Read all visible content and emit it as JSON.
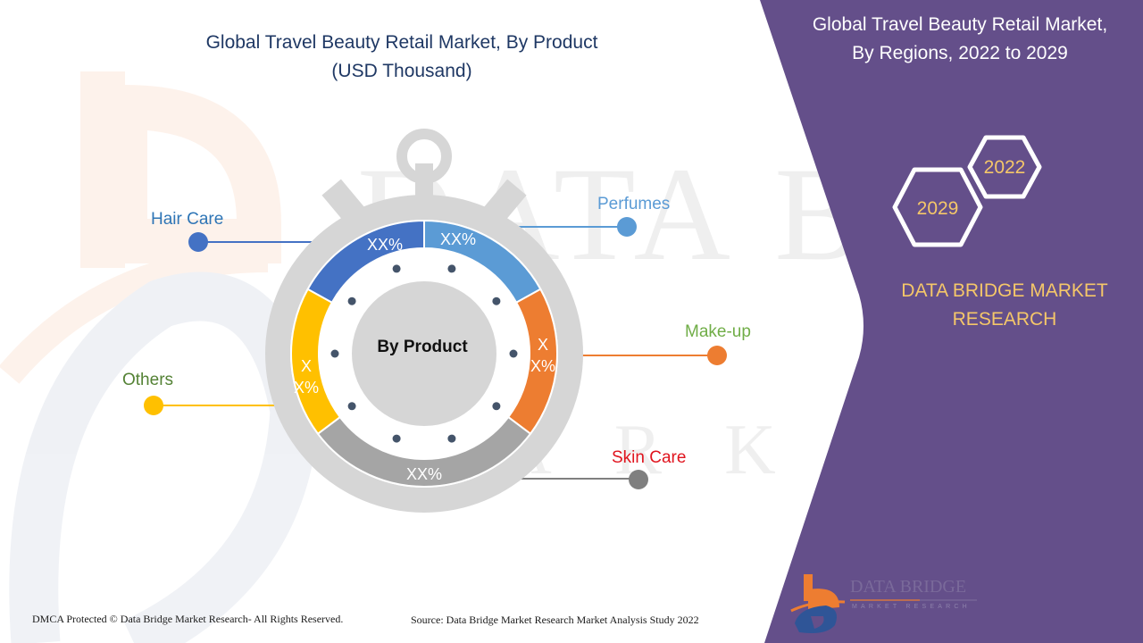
{
  "header": {
    "title_line1": "Global Travel Beauty Retail Market, By Product",
    "title_line2": "(USD Thousand)"
  },
  "right_panel": {
    "title_line1": "Global Travel Beauty Retail Market,",
    "title_line2": "By Regions, 2022 to 2029",
    "hexagons": [
      {
        "label": "2022"
      },
      {
        "label": "2029"
      }
    ],
    "brand_line1": "DATA BRIDGE MARKET",
    "brand_line2": "RESEARCH",
    "logo": {
      "name_line1": "DATA BRIDGE",
      "name_line2": "MARKET RESEARCH"
    },
    "colors": {
      "panel": "#644f8a",
      "hex_text": "#f5c769",
      "brand_text": "#f5c769"
    }
  },
  "footer": {
    "copyright": "DMCA Protected © Data Bridge Market Research- All Rights Reserved.",
    "source": "Source: Data Bridge Market Research Market Analysis Study 2022"
  },
  "chart_data": {
    "type": "pie",
    "style": "donut (stopwatch)",
    "title": "Global Travel Beauty Retail Market, By Product",
    "subtitle": "(USD Thousand)",
    "center_label": "By Product",
    "categories": [
      "Perfumes",
      "Make-up",
      "Skin Care",
      "Others",
      "Hair Care"
    ],
    "values_label": [
      "XX%",
      "XX%",
      "XX%",
      "XX%",
      "XX%"
    ],
    "segments": [
      {
        "name": "Perfumes",
        "value_label": "XX%",
        "color": "#5b9bd5",
        "label_color": "#5b9bd5",
        "start_deg": 0,
        "end_deg": 61
      },
      {
        "name": "Make-up",
        "value_label": "XX%",
        "color": "#ed7d31",
        "label_color": "#70ad47",
        "start_deg": 61,
        "end_deg": 127
      },
      {
        "name": "Skin Care",
        "value_label": "XX%",
        "color": "#a5a5a5",
        "label_color": "#e0141e",
        "start_deg": 127,
        "end_deg": 233
      },
      {
        "name": "Others",
        "value_label": "XX%",
        "color": "#ffc000",
        "label_color": "#548235",
        "start_deg": 233,
        "end_deg": 299
      },
      {
        "name": "Hair Care",
        "value_label": "XX%",
        "color": "#4472c4",
        "label_color": "#2e75b6",
        "start_deg": 299,
        "end_deg": 360
      }
    ],
    "legend_position": "callouts",
    "grid": false
  }
}
